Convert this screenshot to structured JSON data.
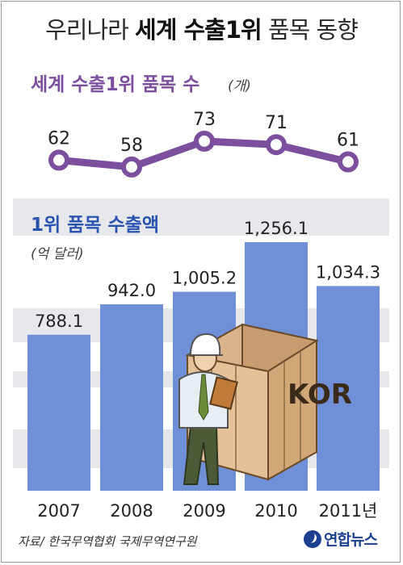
{
  "header": {
    "title_prefix": "우리나라 ",
    "title_bold": "세계 수출1위",
    "title_suffix": " 품목 동향"
  },
  "chart_data": [
    {
      "type": "line",
      "title": "세계 수출1위 품목 수",
      "unit": "(개)",
      "x": [
        "2007",
        "2008",
        "2009",
        "2010",
        "2011"
      ],
      "values": [
        62,
        58,
        73,
        71,
        61
      ],
      "ylim": [
        50,
        80
      ],
      "color": "#7b4f9e"
    },
    {
      "type": "bar",
      "title": "1위 품목 수출액",
      "unit": "(억 달러)",
      "categories": [
        "2007",
        "2008",
        "2009",
        "2010",
        "2011년"
      ],
      "values": [
        "788.1",
        "942.0",
        "1,005.2",
        "1,256.1",
        "1,034.3"
      ],
      "ylim": [
        0,
        1300
      ],
      "grid": true,
      "bar_color": "#6f8fd6",
      "title_color": "#2a53b0"
    }
  ],
  "footer": {
    "source": "자료/ 한국무역협회 국제무역연구원",
    "logo_text": "연합뉴스"
  },
  "illustration": {
    "crate_label": "KOR"
  },
  "colors": {
    "purple": "#7b4f9e",
    "bar_blue": "#6f8fd6",
    "grid_band": "#e6e8ec"
  }
}
